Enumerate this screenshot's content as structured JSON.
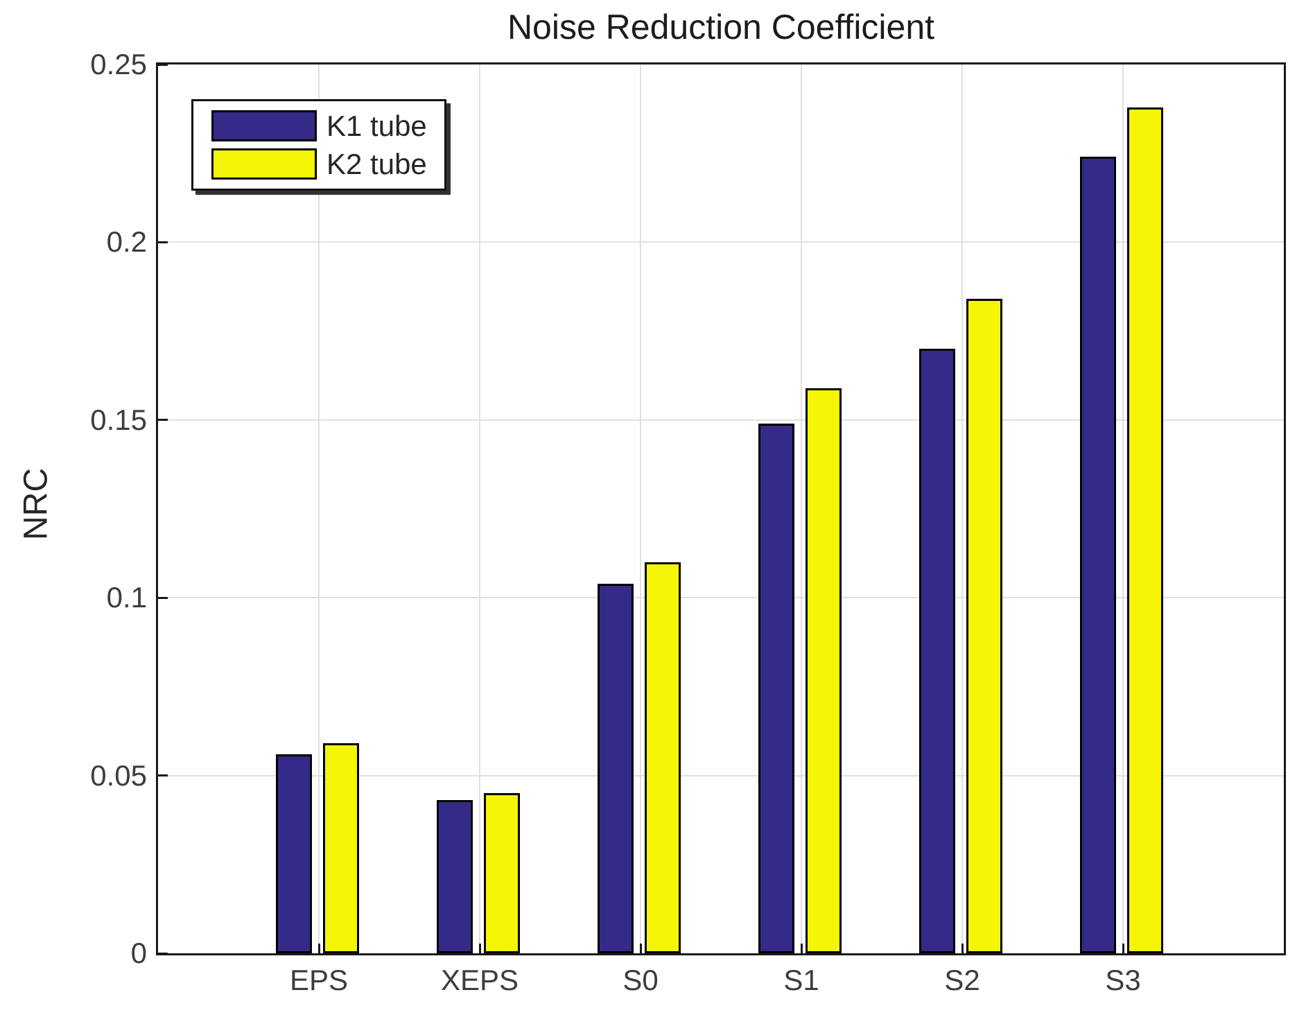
{
  "chart_data": {
    "type": "bar",
    "title": "Noise Reduction Coefficient",
    "xlabel": "",
    "ylabel": "NRC",
    "categories": [
      "EPS",
      "XEPS",
      "S0",
      "S1",
      "S2",
      "S3"
    ],
    "series": [
      {
        "name": "K1 tube",
        "color": "#352A87",
        "values": [
          0.056,
          0.043,
          0.104,
          0.149,
          0.17,
          0.224
        ]
      },
      {
        "name": "K2 tube",
        "color": "#F5F506",
        "values": [
          0.059,
          0.045,
          0.11,
          0.159,
          0.184,
          0.238
        ]
      }
    ],
    "ylim": [
      0,
      0.25
    ],
    "yticks": [
      0,
      0.05,
      0.1,
      0.15,
      0.2,
      0.25
    ],
    "ytick_labels": [
      "0",
      "0.05",
      "0.1",
      "0.15",
      "0.2",
      "0.25"
    ],
    "grid": true,
    "legend_position": "top-left"
  },
  "colors": {
    "background": "#ffffff",
    "grid": "#e0e0e0",
    "axis": "#1a1a1a",
    "bar_outline": "#000000",
    "tick_text": "#3d3d3d",
    "title_text": "#1c1c1c"
  }
}
